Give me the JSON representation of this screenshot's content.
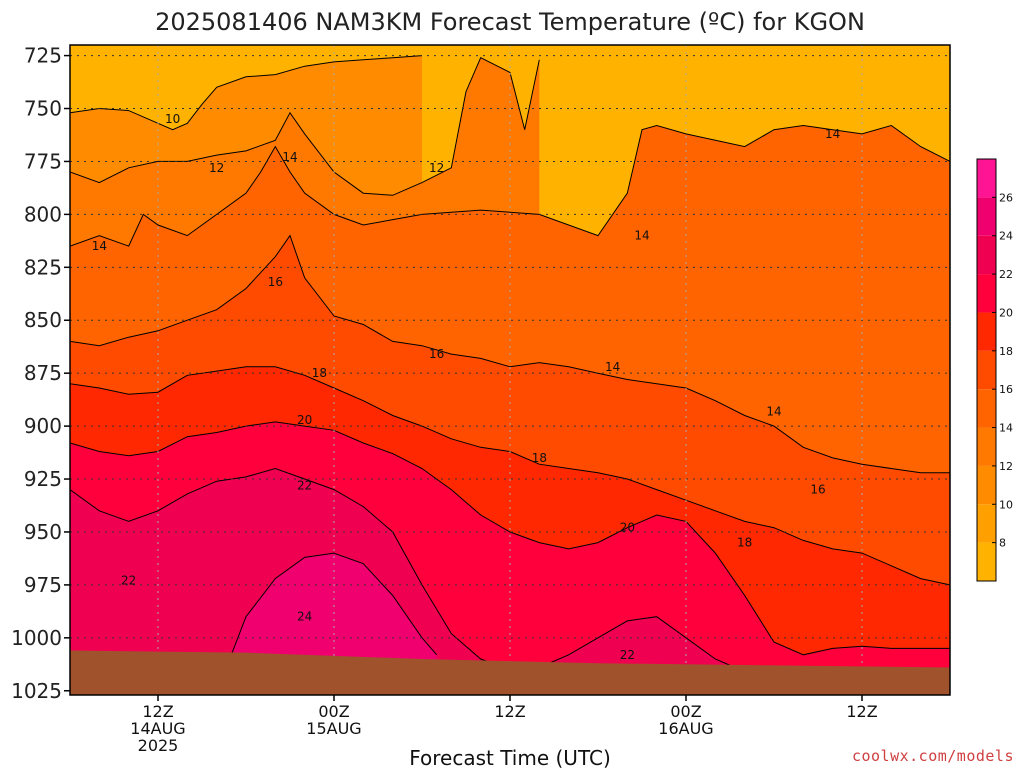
{
  "chart_data": {
    "type": "heatmap",
    "title": "2025081406 NAM3KM Forecast Temperature (ºC) for KGON",
    "xlabel": "Forecast Time (UTC)",
    "ylabel": "",
    "y_axis": {
      "label": "",
      "ticks": [
        725,
        750,
        775,
        800,
        825,
        850,
        875,
        900,
        925,
        950,
        975,
        1000,
        1025
      ],
      "range": [
        725,
        1025
      ],
      "direction": "pressure increases downward"
    },
    "x_axis": {
      "range_hours": [
        0,
        60
      ],
      "ticks": [
        {
          "hour": 6,
          "lines": [
            "12Z",
            "14AUG",
            "2025"
          ]
        },
        {
          "hour": 18,
          "lines": [
            "00Z",
            "15AUG"
          ]
        },
        {
          "hour": 30,
          "lines": [
            "12Z"
          ]
        },
        {
          "hour": 42,
          "lines": [
            "00Z",
            "16AUG"
          ]
        },
        {
          "hour": 54,
          "lines": [
            "12Z"
          ]
        }
      ]
    },
    "colorbar": {
      "levels": [
        6,
        8,
        10,
        12,
        14,
        16,
        18,
        20,
        22,
        24,
        26,
        28
      ],
      "labels": [
        8,
        10,
        12,
        14,
        16,
        18,
        20,
        22,
        24,
        26
      ],
      "colors": [
        "#ffb200",
        "#ffa000",
        "#ff8c00",
        "#ff7800",
        "#ff6400",
        "#ff4b00",
        "#ff2800",
        "#ff003c",
        "#f00050",
        "#f0006e",
        "#ff1493"
      ]
    },
    "series": [
      {
        "name": "10",
        "pressure_by_hour": [
          [
            0,
            752
          ],
          [
            2,
            750
          ],
          [
            4,
            751
          ],
          [
            6,
            757
          ],
          [
            7,
            760
          ],
          [
            8,
            757
          ],
          [
            9,
            748
          ],
          [
            10,
            740
          ],
          [
            12,
            735
          ],
          [
            14,
            734
          ],
          [
            16,
            730
          ],
          [
            18,
            728
          ],
          [
            20,
            727
          ],
          [
            22,
            726
          ],
          [
            24,
            725
          ]
        ]
      },
      {
        "name": "12",
        "pressure_by_hour": [
          [
            0,
            780
          ],
          [
            2,
            785
          ],
          [
            4,
            778
          ],
          [
            6,
            775
          ],
          [
            8,
            775
          ],
          [
            10,
            772
          ],
          [
            12,
            770
          ],
          [
            14,
            765
          ],
          [
            15,
            752
          ],
          [
            16,
            762
          ],
          [
            18,
            780
          ],
          [
            20,
            790
          ],
          [
            22,
            791
          ],
          [
            24,
            785
          ],
          [
            26,
            778
          ],
          [
            27,
            742
          ],
          [
            28,
            726
          ],
          [
            30,
            733
          ],
          [
            31,
            760
          ],
          [
            32,
            727
          ]
        ]
      },
      {
        "name": "14",
        "pressure_by_hour": [
          [
            0,
            815
          ],
          [
            2,
            810
          ],
          [
            4,
            815
          ],
          [
            5,
            800
          ],
          [
            6,
            805
          ],
          [
            8,
            810
          ],
          [
            10,
            800
          ],
          [
            12,
            790
          ],
          [
            13,
            780
          ],
          [
            14,
            768
          ],
          [
            15,
            780
          ],
          [
            16,
            790
          ],
          [
            18,
            800
          ],
          [
            20,
            805
          ],
          [
            24,
            800
          ],
          [
            28,
            798
          ],
          [
            32,
            800
          ],
          [
            36,
            810
          ],
          [
            38,
            790
          ],
          [
            39,
            760
          ],
          [
            40,
            758
          ],
          [
            42,
            762
          ],
          [
            44,
            765
          ],
          [
            46,
            768
          ],
          [
            48,
            760
          ],
          [
            50,
            758
          ],
          [
            52,
            760
          ],
          [
            54,
            762
          ],
          [
            56,
            758
          ],
          [
            58,
            768
          ],
          [
            60,
            775
          ]
        ]
      },
      {
        "name": "16",
        "pressure_by_hour": [
          [
            0,
            860
          ],
          [
            2,
            862
          ],
          [
            4,
            858
          ],
          [
            6,
            855
          ],
          [
            8,
            850
          ],
          [
            10,
            845
          ],
          [
            12,
            835
          ],
          [
            14,
            820
          ],
          [
            15,
            810
          ],
          [
            16,
            830
          ],
          [
            18,
            848
          ],
          [
            20,
            852
          ],
          [
            22,
            860
          ],
          [
            24,
            862
          ],
          [
            26,
            866
          ],
          [
            28,
            868
          ],
          [
            30,
            872
          ],
          [
            32,
            870
          ],
          [
            34,
            872
          ],
          [
            36,
            875
          ],
          [
            38,
            878
          ],
          [
            40,
            880
          ],
          [
            42,
            882
          ],
          [
            44,
            888
          ],
          [
            46,
            895
          ],
          [
            48,
            900
          ],
          [
            50,
            910
          ],
          [
            52,
            915
          ],
          [
            54,
            918
          ],
          [
            56,
            920
          ],
          [
            58,
            922
          ],
          [
            60,
            922
          ]
        ]
      },
      {
        "name": "18",
        "pressure_by_hour": [
          [
            0,
            880
          ],
          [
            2,
            882
          ],
          [
            4,
            885
          ],
          [
            6,
            884
          ],
          [
            8,
            876
          ],
          [
            10,
            874
          ],
          [
            12,
            872
          ],
          [
            14,
            872
          ],
          [
            16,
            876
          ],
          [
            18,
            882
          ],
          [
            20,
            888
          ],
          [
            22,
            895
          ],
          [
            24,
            900
          ],
          [
            26,
            906
          ],
          [
            28,
            910
          ],
          [
            30,
            912
          ],
          [
            32,
            918
          ],
          [
            34,
            920
          ],
          [
            36,
            922
          ],
          [
            38,
            925
          ],
          [
            40,
            930
          ],
          [
            42,
            935
          ],
          [
            44,
            940
          ],
          [
            46,
            945
          ],
          [
            48,
            948
          ],
          [
            50,
            954
          ],
          [
            52,
            958
          ],
          [
            54,
            960
          ],
          [
            56,
            966
          ],
          [
            58,
            972
          ],
          [
            60,
            975
          ]
        ]
      },
      {
        "name": "20",
        "pressure_by_hour": [
          [
            0,
            908
          ],
          [
            2,
            912
          ],
          [
            4,
            914
          ],
          [
            6,
            912
          ],
          [
            8,
            905
          ],
          [
            10,
            903
          ],
          [
            12,
            900
          ],
          [
            14,
            898
          ],
          [
            16,
            900
          ],
          [
            18,
            902
          ],
          [
            20,
            908
          ],
          [
            22,
            913
          ],
          [
            24,
            920
          ],
          [
            26,
            930
          ],
          [
            28,
            942
          ],
          [
            30,
            950
          ],
          [
            32,
            955
          ],
          [
            34,
            958
          ],
          [
            36,
            955
          ],
          [
            38,
            948
          ],
          [
            40,
            942
          ],
          [
            42,
            945
          ],
          [
            44,
            960
          ],
          [
            46,
            980
          ],
          [
            48,
            1002
          ],
          [
            50,
            1008
          ],
          [
            52,
            1005
          ],
          [
            54,
            1004
          ],
          [
            56,
            1005
          ],
          [
            58,
            1005
          ],
          [
            60,
            1005
          ]
        ]
      },
      {
        "name": "22",
        "pressure_by_hour": [
          [
            0,
            930
          ],
          [
            2,
            940
          ],
          [
            4,
            945
          ],
          [
            6,
            940
          ],
          [
            8,
            932
          ],
          [
            10,
            926
          ],
          [
            12,
            924
          ],
          [
            14,
            920
          ],
          [
            16,
            925
          ],
          [
            18,
            930
          ],
          [
            20,
            938
          ],
          [
            22,
            950
          ],
          [
            24,
            975
          ],
          [
            26,
            998
          ],
          [
            28,
            1010
          ],
          [
            30,
            1015
          ],
          [
            32,
            1014
          ],
          [
            34,
            1008
          ],
          [
            36,
            1000
          ],
          [
            38,
            992
          ],
          [
            40,
            990
          ],
          [
            42,
            1000
          ],
          [
            44,
            1010
          ],
          [
            46,
            1016
          ]
        ]
      },
      {
        "name": "24",
        "pressure_by_hour": [
          [
            11,
            1008
          ],
          [
            12,
            990
          ],
          [
            14,
            972
          ],
          [
            16,
            962
          ],
          [
            18,
            960
          ],
          [
            20,
            965
          ],
          [
            22,
            980
          ],
          [
            24,
            1000
          ],
          [
            25,
            1008
          ]
        ]
      }
    ],
    "contour_labels": [
      {
        "text": "10",
        "hour": 7,
        "p": 755
      },
      {
        "text": "12",
        "hour": 10,
        "p": 778
      },
      {
        "text": "14",
        "hour": 15,
        "p": 773
      },
      {
        "text": "12",
        "hour": 25,
        "p": 778
      },
      {
        "text": "14",
        "hour": 2,
        "p": 815
      },
      {
        "text": "16",
        "hour": 14,
        "p": 832
      },
      {
        "text": "14",
        "hour": 39,
        "p": 810
      },
      {
        "text": "14",
        "hour": 52,
        "p": 762
      },
      {
        "text": "16",
        "hour": 25,
        "p": 866
      },
      {
        "text": "14",
        "hour": 37,
        "p": 872
      },
      {
        "text": "14",
        "hour": 48,
        "p": 893
      },
      {
        "text": "18",
        "hour": 17,
        "p": 875
      },
      {
        "text": "20",
        "hour": 16,
        "p": 897
      },
      {
        "text": "18",
        "hour": 32,
        "p": 915
      },
      {
        "text": "16",
        "hour": 51,
        "p": 930
      },
      {
        "text": "22",
        "hour": 16,
        "p": 928
      },
      {
        "text": "20",
        "hour": 38,
        "p": 948
      },
      {
        "text": "18",
        "hour": 46,
        "p": 955
      },
      {
        "text": "22",
        "hour": 4,
        "p": 973
      },
      {
        "text": "24",
        "hour": 16,
        "p": 990
      },
      {
        "text": "22",
        "hour": 38,
        "p": 1008
      }
    ],
    "ground": {
      "color": "#a0522d",
      "pressure_by_hour": [
        [
          0,
          1006
        ],
        [
          12,
          1007
        ],
        [
          24,
          1010
        ],
        [
          36,
          1012
        ],
        [
          48,
          1013
        ],
        [
          60,
          1014
        ]
      ]
    },
    "grid": true
  },
  "credit": "coolwx.com/models"
}
